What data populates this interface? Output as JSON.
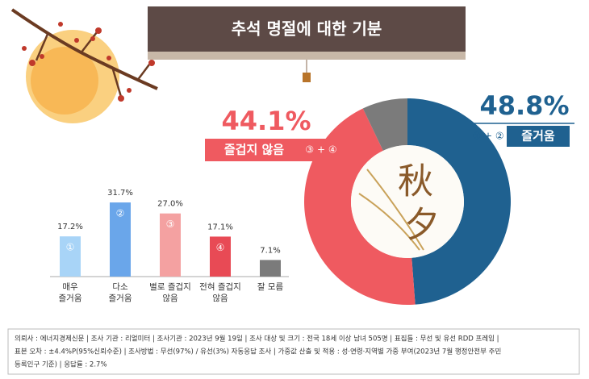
{
  "title": "추석 명절에 대한 기분",
  "chart_data": [
    {
      "type": "pie",
      "categories": [
        "즐거움",
        "즐겁지 않음",
        null
      ],
      "values": [
        48.8,
        44.1,
        7.1
      ],
      "value_labels": [
        "48.8%",
        "44.1%",
        null
      ],
      "groups": [
        "① + ②",
        "③ + ④",
        null
      ],
      "colors": [
        "#1f6190",
        "#ef5a60",
        "#7b7b7b"
      ],
      "center_text": [
        "秋",
        "夕"
      ]
    },
    {
      "type": "bar",
      "categories": [
        [
          "매우",
          "즐거움"
        ],
        [
          "다소",
          "즐거움"
        ],
        [
          "별로 즐겁지",
          "않음"
        ],
        [
          "전혀 즐겁지",
          "않음"
        ],
        [
          "잘 모름"
        ]
      ],
      "values": [
        17.2,
        31.7,
        27.0,
        17.1,
        7.1
      ],
      "value_labels": [
        "17.2%",
        "31.7%",
        "27.0%",
        "17.1%",
        "7.1%"
      ],
      "markers": [
        "①",
        "②",
        "③",
        "④",
        null
      ],
      "colors": [
        "#a8d4f7",
        "#6aa6ea",
        "#f4a1a1",
        "#e84a55",
        "#7b7b7b"
      ]
    }
  ],
  "footer": {
    "lines": [
      "의뢰사 : 에너지경제신문  |  조사 기관 : 리얼미터  |  조사기관 : 2023년 9월 19일  |  조사 대상 및 크기 : 전국 18세 이상 남녀 505명  |  표집틀 : 무선 및 유선 RDD 프레임  |",
      "표본 오차 : ±4.4%P(95%신뢰수준)  |  조사방법 : 무선(97%) / 유선(3%) 자동응답 조사  |  가중값 산출 및 적용 : 성·연령·지역별 가중 부여(2023년 7월 행정안전부 주민",
      "등록인구 기준)  |  응답률 : 2.7%"
    ]
  }
}
